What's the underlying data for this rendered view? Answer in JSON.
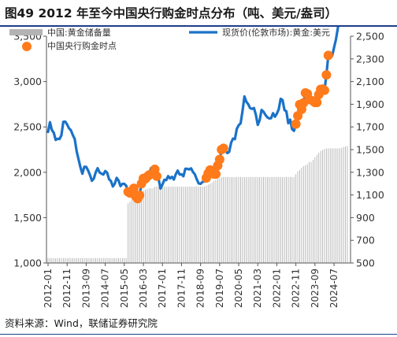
{
  "header": {
    "title": "图49 2012 年至今中国央行购金时点分布（吨、美元/盎司）"
  },
  "footer": {
    "source": "资料来源：Wind，联储证券研究院"
  },
  "legend": {
    "reserves": "中国:黄金储备量",
    "purchase_line1": "中国央行",
    "purchase_line2": "购金时点",
    "price": "现货价(伦敦市场):黄金:美元"
  },
  "colors": {
    "reserves_bar": "#b3b3b3",
    "price_line": "#1a72c8",
    "purchase_dot": "#ff7a1a",
    "title_rule": "#1d3e8a",
    "axis": "#555555"
  },
  "chart_data": {
    "type": "bar+line+scatter",
    "title": "图49 2012 年至今中国央行购金时点分布（吨、美元/盎司）",
    "x_ticks": [
      "2012-01",
      "2012-11",
      "2013-09",
      "2014-07",
      "2015-05",
      "2016-03",
      "2017-01",
      "2017-11",
      "2018-09",
      "2019-07",
      "2020-05",
      "2021-03",
      "2022-01",
      "2022-11",
      "2023-09",
      "2024-07"
    ],
    "x_range": [
      "2012-01",
      "2025-02"
    ],
    "left_axis": {
      "unit": "吨",
      "ylim": [
        1000,
        3500
      ],
      "ticks": [
        1000,
        1500,
        2000,
        2500,
        3000,
        3500
      ]
    },
    "right_axis": {
      "unit": "美元/盎司",
      "ylim": [
        500,
        2500
      ],
      "ticks": [
        500,
        700,
        900,
        1100,
        1300,
        1500,
        1700,
        1900,
        2100,
        2300,
        2500
      ]
    },
    "reserves": {
      "name": "中国:黄金储备量",
      "axis": "left",
      "points": [
        {
          "date": "2012-01",
          "value": 1054
        },
        {
          "date": "2015-06",
          "value": 1054
        },
        {
          "date": "2015-07",
          "value": 1658
        },
        {
          "date": "2015-08",
          "value": 1677
        },
        {
          "date": "2015-09",
          "value": 1693
        },
        {
          "date": "2015-10",
          "value": 1708
        },
        {
          "date": "2015-11",
          "value": 1722
        },
        {
          "date": "2015-12",
          "value": 1762
        },
        {
          "date": "2016-01",
          "value": 1780
        },
        {
          "date": "2016-02",
          "value": 1788
        },
        {
          "date": "2016-03",
          "value": 1798
        },
        {
          "date": "2016-04",
          "value": 1808
        },
        {
          "date": "2016-05",
          "value": 1814
        },
        {
          "date": "2016-06",
          "value": 1823
        },
        {
          "date": "2016-07",
          "value": 1823
        },
        {
          "date": "2016-08",
          "value": 1823
        },
        {
          "date": "2016-09",
          "value": 1838
        },
        {
          "date": "2016-10",
          "value": 1842
        },
        {
          "date": "2018-11",
          "value": 1842
        },
        {
          "date": "2018-12",
          "value": 1852
        },
        {
          "date": "2019-01",
          "value": 1864
        },
        {
          "date": "2019-02",
          "value": 1874
        },
        {
          "date": "2019-03",
          "value": 1885
        },
        {
          "date": "2019-04",
          "value": 1905
        },
        {
          "date": "2019-05",
          "value": 1916
        },
        {
          "date": "2019-06",
          "value": 1926
        },
        {
          "date": "2019-07",
          "value": 1936
        },
        {
          "date": "2019-08",
          "value": 1944
        },
        {
          "date": "2019-09",
          "value": 1948
        },
        {
          "date": "2022-10",
          "value": 1948
        },
        {
          "date": "2022-11",
          "value": 1980
        },
        {
          "date": "2022-12",
          "value": 2010
        },
        {
          "date": "2023-01",
          "value": 2025
        },
        {
          "date": "2023-02",
          "value": 2050
        },
        {
          "date": "2023-03",
          "value": 2068
        },
        {
          "date": "2023-04",
          "value": 2076
        },
        {
          "date": "2023-05",
          "value": 2092
        },
        {
          "date": "2023-06",
          "value": 2113
        },
        {
          "date": "2023-07",
          "value": 2113
        },
        {
          "date": "2023-08",
          "value": 2136
        },
        {
          "date": "2023-09",
          "value": 2165
        },
        {
          "date": "2023-10",
          "value": 2192
        },
        {
          "date": "2023-11",
          "value": 2215
        },
        {
          "date": "2023-12",
          "value": 2235
        },
        {
          "date": "2024-01",
          "value": 2245
        },
        {
          "date": "2024-02",
          "value": 2257
        },
        {
          "date": "2024-03",
          "value": 2262
        },
        {
          "date": "2024-04",
          "value": 2264
        },
        {
          "date": "2024-10",
          "value": 2264
        },
        {
          "date": "2024-11",
          "value": 2269
        },
        {
          "date": "2024-12",
          "value": 2279
        },
        {
          "date": "2025-01",
          "value": 2285
        },
        {
          "date": "2025-02",
          "value": 2290
        }
      ]
    },
    "price": {
      "name": "现货价(伦敦市场):黄金:美元",
      "axis": "right",
      "points": [
        {
          "date": "2012-01",
          "value": 1656
        },
        {
          "date": "2012-02",
          "value": 1742
        },
        {
          "date": "2012-03",
          "value": 1673
        },
        {
          "date": "2012-04",
          "value": 1649
        },
        {
          "date": "2012-05",
          "value": 1585
        },
        {
          "date": "2012-06",
          "value": 1596
        },
        {
          "date": "2012-07",
          "value": 1593
        },
        {
          "date": "2012-08",
          "value": 1626
        },
        {
          "date": "2012-09",
          "value": 1745
        },
        {
          "date": "2012-10",
          "value": 1747
        },
        {
          "date": "2012-11",
          "value": 1722
        },
        {
          "date": "2012-12",
          "value": 1688
        },
        {
          "date": "2013-01",
          "value": 1670
        },
        {
          "date": "2013-02",
          "value": 1628
        },
        {
          "date": "2013-03",
          "value": 1593
        },
        {
          "date": "2013-04",
          "value": 1485
        },
        {
          "date": "2013-05",
          "value": 1414
        },
        {
          "date": "2013-06",
          "value": 1343
        },
        {
          "date": "2013-07",
          "value": 1287
        },
        {
          "date": "2013-08",
          "value": 1348
        },
        {
          "date": "2013-09",
          "value": 1348
        },
        {
          "date": "2013-10",
          "value": 1316
        },
        {
          "date": "2013-11",
          "value": 1275
        },
        {
          "date": "2013-12",
          "value": 1225
        },
        {
          "date": "2014-01",
          "value": 1244
        },
        {
          "date": "2014-02",
          "value": 1300
        },
        {
          "date": "2014-03",
          "value": 1336
        },
        {
          "date": "2014-04",
          "value": 1299
        },
        {
          "date": "2014-05",
          "value": 1288
        },
        {
          "date": "2014-06",
          "value": 1280
        },
        {
          "date": "2014-07",
          "value": 1311
        },
        {
          "date": "2014-08",
          "value": 1296
        },
        {
          "date": "2014-09",
          "value": 1239
        },
        {
          "date": "2014-10",
          "value": 1222
        },
        {
          "date": "2014-11",
          "value": 1175
        },
        {
          "date": "2014-12",
          "value": 1200
        },
        {
          "date": "2015-01",
          "value": 1251
        },
        {
          "date": "2015-02",
          "value": 1227
        },
        {
          "date": "2015-03",
          "value": 1178
        },
        {
          "date": "2015-04",
          "value": 1198
        },
        {
          "date": "2015-05",
          "value": 1198
        },
        {
          "date": "2015-06",
          "value": 1181
        },
        {
          "date": "2015-07",
          "value": 1128
        },
        {
          "date": "2015-08",
          "value": 1117
        },
        {
          "date": "2015-09",
          "value": 1125
        },
        {
          "date": "2015-10",
          "value": 1159
        },
        {
          "date": "2015-11",
          "value": 1086
        },
        {
          "date": "2015-12",
          "value": 1068
        },
        {
          "date": "2016-01",
          "value": 1097
        },
        {
          "date": "2016-02",
          "value": 1200
        },
        {
          "date": "2016-03",
          "value": 1246
        },
        {
          "date": "2016-04",
          "value": 1242
        },
        {
          "date": "2016-05",
          "value": 1260
        },
        {
          "date": "2016-06",
          "value": 1276
        },
        {
          "date": "2016-07",
          "value": 1337
        },
        {
          "date": "2016-08",
          "value": 1341
        },
        {
          "date": "2016-09",
          "value": 1326
        },
        {
          "date": "2016-10",
          "value": 1266
        },
        {
          "date": "2016-11",
          "value": 1238
        },
        {
          "date": "2016-12",
          "value": 1157
        },
        {
          "date": "2017-01",
          "value": 1192
        },
        {
          "date": "2017-02",
          "value": 1234
        },
        {
          "date": "2017-03",
          "value": 1231
        },
        {
          "date": "2017-04",
          "value": 1266
        },
        {
          "date": "2017-05",
          "value": 1246
        },
        {
          "date": "2017-06",
          "value": 1260
        },
        {
          "date": "2017-07",
          "value": 1236
        },
        {
          "date": "2017-08",
          "value": 1283
        },
        {
          "date": "2017-09",
          "value": 1315
        },
        {
          "date": "2017-10",
          "value": 1280
        },
        {
          "date": "2017-11",
          "value": 1282
        },
        {
          "date": "2017-12",
          "value": 1265
        },
        {
          "date": "2018-01",
          "value": 1331
        },
        {
          "date": "2018-02",
          "value": 1331
        },
        {
          "date": "2018-03",
          "value": 1325
        },
        {
          "date": "2018-04",
          "value": 1335
        },
        {
          "date": "2018-05",
          "value": 1303
        },
        {
          "date": "2018-06",
          "value": 1282
        },
        {
          "date": "2018-07",
          "value": 1238
        },
        {
          "date": "2018-08",
          "value": 1202
        },
        {
          "date": "2018-09",
          "value": 1198
        },
        {
          "date": "2018-10",
          "value": 1215
        },
        {
          "date": "2018-11",
          "value": 1220
        },
        {
          "date": "2018-12",
          "value": 1250
        },
        {
          "date": "2019-01",
          "value": 1291
        },
        {
          "date": "2019-02",
          "value": 1320
        },
        {
          "date": "2019-03",
          "value": 1301
        },
        {
          "date": "2019-04",
          "value": 1285
        },
        {
          "date": "2019-05",
          "value": 1284
        },
        {
          "date": "2019-06",
          "value": 1359
        },
        {
          "date": "2019-07",
          "value": 1413
        },
        {
          "date": "2019-08",
          "value": 1500
        },
        {
          "date": "2019-09",
          "value": 1511
        },
        {
          "date": "2019-10",
          "value": 1495
        },
        {
          "date": "2019-11",
          "value": 1470
        },
        {
          "date": "2019-12",
          "value": 1480
        },
        {
          "date": "2020-01",
          "value": 1560
        },
        {
          "date": "2020-02",
          "value": 1597
        },
        {
          "date": "2020-03",
          "value": 1592
        },
        {
          "date": "2020-04",
          "value": 1683
        },
        {
          "date": "2020-05",
          "value": 1715
        },
        {
          "date": "2020-06",
          "value": 1732
        },
        {
          "date": "2020-07",
          "value": 1840
        },
        {
          "date": "2020-08",
          "value": 1969
        },
        {
          "date": "2020-09",
          "value": 1922
        },
        {
          "date": "2020-10",
          "value": 1900
        },
        {
          "date": "2020-11",
          "value": 1866
        },
        {
          "date": "2020-12",
          "value": 1859
        },
        {
          "date": "2021-01",
          "value": 1867
        },
        {
          "date": "2021-02",
          "value": 1808
        },
        {
          "date": "2021-03",
          "value": 1718
        },
        {
          "date": "2021-04",
          "value": 1760
        },
        {
          "date": "2021-05",
          "value": 1850
        },
        {
          "date": "2021-06",
          "value": 1834
        },
        {
          "date": "2021-07",
          "value": 1807
        },
        {
          "date": "2021-08",
          "value": 1785
        },
        {
          "date": "2021-09",
          "value": 1775
        },
        {
          "date": "2021-10",
          "value": 1777
        },
        {
          "date": "2021-11",
          "value": 1821
        },
        {
          "date": "2021-12",
          "value": 1790
        },
        {
          "date": "2022-01",
          "value": 1817
        },
        {
          "date": "2022-02",
          "value": 1856
        },
        {
          "date": "2022-03",
          "value": 1948
        },
        {
          "date": "2022-04",
          "value": 1937
        },
        {
          "date": "2022-05",
          "value": 1849
        },
        {
          "date": "2022-06",
          "value": 1837
        },
        {
          "date": "2022-07",
          "value": 1733
        },
        {
          "date": "2022-08",
          "value": 1764
        },
        {
          "date": "2022-09",
          "value": 1680
        },
        {
          "date": "2022-10",
          "value": 1665
        },
        {
          "date": "2022-11",
          "value": 1726
        },
        {
          "date": "2022-12",
          "value": 1798
        },
        {
          "date": "2023-01",
          "value": 1898
        },
        {
          "date": "2023-02",
          "value": 1855
        },
        {
          "date": "2023-03",
          "value": 1912
        },
        {
          "date": "2023-04",
          "value": 2000
        },
        {
          "date": "2023-05",
          "value": 1992
        },
        {
          "date": "2023-06",
          "value": 1942
        },
        {
          "date": "2023-07",
          "value": 1951
        },
        {
          "date": "2023-08",
          "value": 1929
        },
        {
          "date": "2023-09",
          "value": 1916
        },
        {
          "date": "2023-10",
          "value": 1916
        },
        {
          "date": "2023-11",
          "value": 1985
        },
        {
          "date": "2023-12",
          "value": 2031
        },
        {
          "date": "2024-01",
          "value": 2034
        },
        {
          "date": "2024-02",
          "value": 2023
        },
        {
          "date": "2024-03",
          "value": 2159
        },
        {
          "date": "2024-04",
          "value": 2331
        },
        {
          "date": "2024-05",
          "value": 2351
        },
        {
          "date": "2024-06",
          "value": 2326
        },
        {
          "date": "2024-07",
          "value": 2399
        },
        {
          "date": "2024-08",
          "value": 2471
        },
        {
          "date": "2024-09",
          "value": 2572
        },
        {
          "date": "2024-10",
          "value": 2690
        },
        {
          "date": "2024-11",
          "value": 2652
        },
        {
          "date": "2024-12",
          "value": 2648
        },
        {
          "date": "2025-01",
          "value": 2710
        },
        {
          "date": "2025-02",
          "value": 2890
        }
      ]
    },
    "purchases": {
      "name": "中国央行购金时点",
      "axis": "right",
      "dates": [
        "2015-07",
        "2015-08",
        "2015-09",
        "2015-10",
        "2015-11",
        "2015-12",
        "2016-01",
        "2016-02",
        "2016-03",
        "2016-04",
        "2016-05",
        "2016-06",
        "2016-09",
        "2016-10",
        "2018-12",
        "2019-01",
        "2019-02",
        "2019-03",
        "2019-04",
        "2019-05",
        "2019-06",
        "2019-07",
        "2019-08",
        "2019-09",
        "2022-11",
        "2022-12",
        "2023-01",
        "2023-02",
        "2023-03",
        "2023-04",
        "2023-05",
        "2023-06",
        "2023-08",
        "2023-09",
        "2023-10",
        "2023-11",
        "2023-12",
        "2024-01",
        "2024-02",
        "2024-03",
        "2024-04",
        "2024-11",
        "2024-12",
        "2025-01",
        "2025-02"
      ]
    },
    "grid": false,
    "legend_position": "top"
  }
}
